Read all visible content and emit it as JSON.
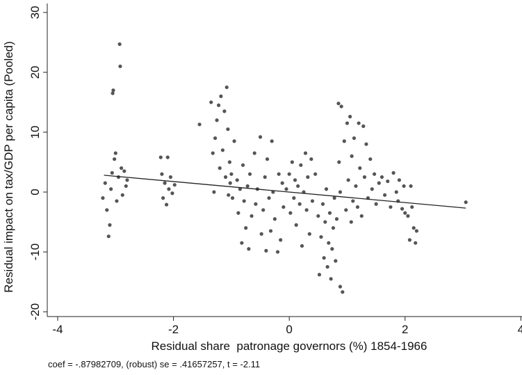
{
  "chart_data": {
    "type": "scatter",
    "x_label": "Residual share  patronage governors (%) 1854-1966",
    "y_label": "Residual impact on tax/GDP per capita (Pooled)",
    "note": "coef = -.87982709, (robust) se = .41657257, t = -2.11",
    "xlim": [
      -4.18,
      4.02
    ],
    "ylim": [
      -20.8,
      31.5
    ],
    "xticks": [
      -4,
      -2,
      0,
      2,
      4
    ],
    "yticks": [
      -20,
      -10,
      0,
      10,
      20,
      30
    ],
    "color": "#555555",
    "x": [
      -3.22,
      -3.18,
      -3.15,
      -3.12,
      -3.1,
      -3.08,
      -3.06,
      -3.05,
      -3.04,
      -3.02,
      -3.0,
      -2.98,
      -2.95,
      -2.93,
      -2.92,
      -2.9,
      -2.88,
      -2.85,
      -2.82,
      -2.8,
      -2.22,
      -2.2,
      -2.18,
      -2.15,
      -2.12,
      -2.1,
      -2.08,
      -2.05,
      -2.02,
      -1.98,
      -1.55,
      -1.35,
      -1.32,
      -1.3,
      -1.28,
      -1.25,
      -1.22,
      -1.2,
      -1.18,
      -1.15,
      -1.12,
      -1.1,
      -1.08,
      -1.06,
      -1.05,
      -1.03,
      -1.02,
      -1.0,
      -0.98,
      -0.95,
      -0.9,
      -0.88,
      -0.85,
      -0.82,
      -0.8,
      -0.78,
      -0.75,
      -0.72,
      -0.7,
      -0.68,
      -0.65,
      -0.6,
      -0.58,
      -0.55,
      -0.5,
      -0.48,
      -0.45,
      -0.42,
      -0.4,
      -0.38,
      -0.35,
      -0.32,
      -0.3,
      -0.28,
      -0.25,
      -0.2,
      -0.18,
      -0.15,
      -0.12,
      -0.1,
      -0.05,
      0.0,
      0.02,
      0.05,
      0.08,
      0.1,
      0.12,
      0.15,
      0.18,
      0.2,
      0.22,
      0.25,
      0.28,
      0.3,
      0.32,
      0.35,
      0.38,
      0.4,
      0.45,
      0.5,
      0.52,
      0.55,
      0.58,
      0.6,
      0.62,
      0.64,
      0.66,
      0.68,
      0.7,
      0.72,
      0.74,
      0.76,
      0.78,
      0.8,
      0.82,
      0.85,
      0.86,
      0.88,
      0.88,
      0.9,
      0.92,
      0.95,
      0.98,
      1.0,
      1.02,
      1.05,
      1.07,
      1.08,
      1.1,
      1.12,
      1.15,
      1.18,
      1.2,
      1.22,
      1.25,
      1.28,
      1.3,
      1.33,
      1.36,
      1.4,
      1.43,
      1.47,
      1.5,
      1.55,
      1.6,
      1.65,
      1.7,
      1.75,
      1.8,
      1.85,
      1.88,
      1.9,
      1.95,
      1.98,
      2.0,
      2.05,
      2.08,
      2.1,
      2.12,
      2.15,
      2.18,
      2.2,
      3.05
    ],
    "values": [
      -1.0,
      1.5,
      -3.0,
      -7.4,
      -5.5,
      0.5,
      3.2,
      16.5,
      17.0,
      5.5,
      6.5,
      -1.5,
      2.5,
      24.7,
      21.0,
      4.0,
      -0.5,
      3.5,
      1.0,
      2.0,
      5.8,
      3.0,
      -1.0,
      1.5,
      -2.1,
      5.8,
      0.5,
      2.5,
      -0.2,
      1.2,
      11.3,
      15.0,
      6.5,
      0.0,
      9.0,
      12.0,
      14.5,
      4.0,
      16.0,
      7.0,
      13.5,
      2.5,
      17.5,
      10.5,
      -0.5,
      5.0,
      1.5,
      3.0,
      -1.0,
      8.5,
      2.0,
      -3.5,
      0.5,
      -8.5,
      4.5,
      -1.5,
      -6.0,
      1.0,
      -9.5,
      3.0,
      -4.0,
      6.5,
      -2.0,
      0.5,
      9.2,
      -7.0,
      -3.0,
      2.5,
      -9.8,
      5.5,
      -1.0,
      -6.5,
      8.5,
      0.0,
      -4.5,
      -10.0,
      3.0,
      -8.0,
      1.5,
      -2.5,
      0.5,
      3.0,
      -3.5,
      5.0,
      -1.0,
      2.0,
      -5.5,
      1.0,
      -2.0,
      4.5,
      -9.0,
      0.0,
      6.5,
      -3.0,
      2.5,
      -7.0,
      5.5,
      -1.5,
      3.0,
      -4.0,
      -13.8,
      -7.5,
      -2.0,
      -11.0,
      -5.0,
      0.5,
      -12.5,
      -8.5,
      -3.5,
      -14.5,
      -9.5,
      -6.0,
      -1.0,
      -11.5,
      -4.5,
      14.8,
      5.0,
      -15.8,
      0.0,
      14.3,
      -16.7,
      8.5,
      -3.0,
      11.5,
      2.0,
      12.6,
      -5.0,
      6.0,
      -1.5,
      9.0,
      1.0,
      -2.5,
      11.5,
      4.0,
      -4.0,
      11.0,
      2.5,
      8.0,
      -1.0,
      5.5,
      0.5,
      3.0,
      -2.0,
      1.5,
      2.5,
      -0.5,
      1.8,
      -2.5,
      3.2,
      0.0,
      -1.5,
      2.0,
      -2.8,
      1.0,
      -3.5,
      -4.0,
      -8.0,
      1.0,
      -2.5,
      -6.0,
      -8.5,
      -6.5,
      -1.7
    ],
    "fit": {
      "type": "line",
      "color": "#222222",
      "x": [
        -3.2,
        3.05
      ],
      "values": [
        2.81,
        -2.68
      ]
    }
  }
}
